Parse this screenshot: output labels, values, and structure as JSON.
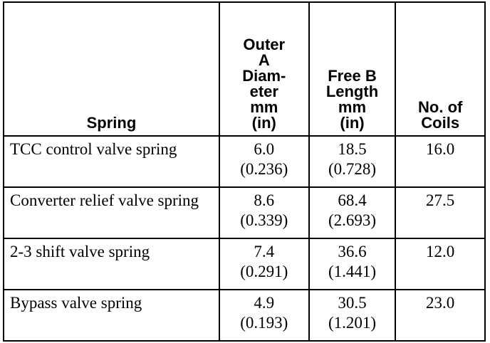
{
  "table": {
    "headers": {
      "spring": "Spring",
      "outer_diameter": [
        "Outer",
        "A",
        "Diam-",
        "eter",
        "mm",
        "(in)"
      ],
      "free_length": [
        "Free B",
        "Length",
        "mm",
        "(in)"
      ],
      "coils": [
        "No. of",
        "Coils"
      ]
    },
    "rows": [
      {
        "spring": "TCC control valve spring",
        "outer_diameter_mm": "6.0",
        "outer_diameter_in": "(0.236)",
        "free_length_mm": "18.5",
        "free_length_in": "(0.728)",
        "coils": "16.0"
      },
      {
        "spring": "Converter relief valve spring",
        "outer_diameter_mm": "8.6",
        "outer_diameter_in": "(0.339)",
        "free_length_mm": "68.4",
        "free_length_in": "(2.693)",
        "coils": "27.5"
      },
      {
        "spring": "2-3 shift valve spring",
        "outer_diameter_mm": "7.4",
        "outer_diameter_in": "(0.291)",
        "free_length_mm": "36.6",
        "free_length_in": "(1.441)",
        "coils": "12.0"
      },
      {
        "spring": "Bypass valve spring",
        "outer_diameter_mm": "4.9",
        "outer_diameter_in": "(0.193)",
        "free_length_mm": "30.5",
        "free_length_in": "(1.201)",
        "coils": "23.0"
      }
    ]
  }
}
